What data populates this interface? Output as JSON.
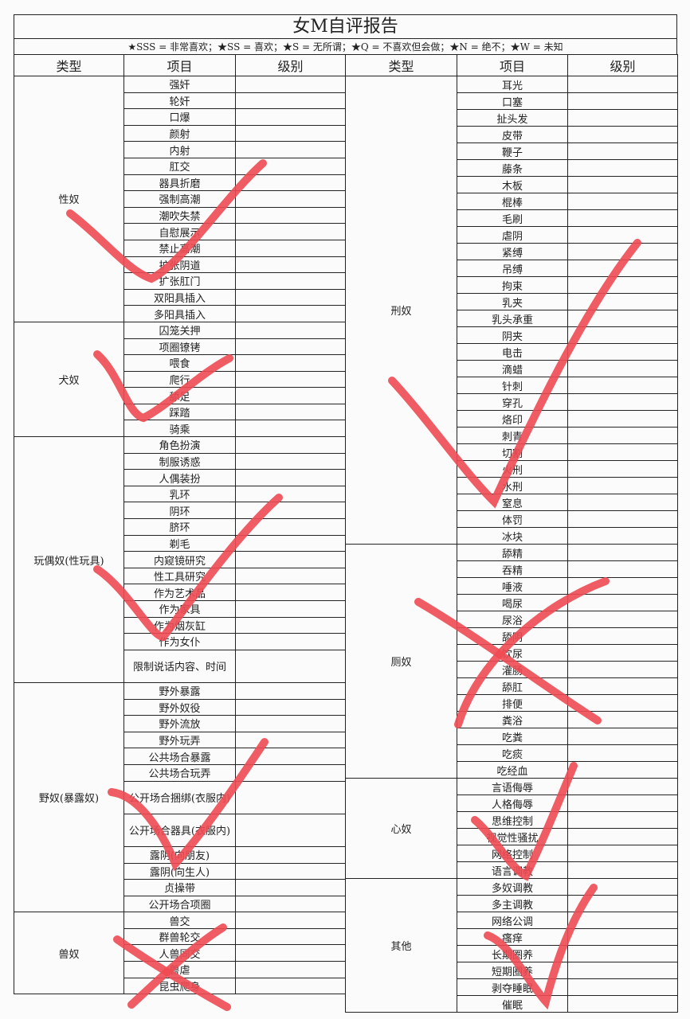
{
  "title": "女M自评报告",
  "legend": "★SSS = 非常喜欢；★SS = 喜欢；★S = 无所谓；★Q = 不喜欢但会做；★N = 绝不；★W = 未知",
  "headers": {
    "type": "类型",
    "item": "项目",
    "level": "级别"
  },
  "left": [
    {
      "type": "性奴",
      "items": [
        "强奸",
        "轮奸",
        "口爆",
        "颜射",
        "内射",
        "肛交",
        "器具折磨",
        "强制高潮",
        "潮吹失禁",
        "自慰展示",
        "禁止高潮",
        "扩张阴道",
        "扩张肛门",
        "双阳具插入",
        "多阳具插入"
      ]
    },
    {
      "type": "犬奴",
      "items": [
        "囚笼关押",
        "项圈镣铐",
        "喂食",
        "爬行",
        "舔足",
        "踩踏",
        "骑乘"
      ]
    },
    {
      "type": "玩偶奴(性玩具)",
      "items": [
        "角色扮演",
        "制服诱惑",
        "人偶装扮",
        "乳环",
        "阴环",
        "脐环",
        "剃毛",
        "内窥镜研究",
        "性工具研究",
        "作为艺术品",
        "作为家具",
        "作为烟灰缸",
        "作为女仆",
        "限制说话内容、时间"
      ],
      "tall": [
        13
      ]
    },
    {
      "type": "野奴(暴露奴)",
      "items": [
        "野外暴露",
        "野外奴役",
        "野外流放",
        "野外玩弄",
        "公共场合暴露",
        "公共场合玩弄",
        "公开场合捆绑(衣服内)",
        "公开场合器具(衣服内)",
        "露阴(向朋友)",
        "露阴(向生人)",
        "贞操带",
        "公开场合项圈"
      ],
      "tall": [
        6,
        7
      ]
    },
    {
      "type": "兽奴",
      "items": [
        "兽交",
        "群兽轮交",
        "人兽同交",
        "兽虐",
        "昆虫爬身"
      ]
    }
  ],
  "right": [
    {
      "type": "刑奴",
      "items": [
        "耳光",
        "口塞",
        "扯头发",
        "皮带",
        "鞭子",
        "藤条",
        "木板",
        "棍棒",
        "毛刷",
        "虐阴",
        "紧缚",
        "吊缚",
        "拘束",
        "乳夹",
        "乳头承重",
        "阴夹",
        "电击",
        "滴蜡",
        "针刺",
        "穿孔",
        "烙印",
        "刺青",
        "切割",
        "火刑",
        "水刑",
        "窒息",
        "体罚",
        "冰块"
      ]
    },
    {
      "type": "厕奴",
      "items": [
        "舔精",
        "吞精",
        "唾液",
        "喝尿",
        "尿浴",
        "舔阴",
        "饮尿",
        "灌肠",
        "舔肛",
        "排便",
        "粪浴",
        "吃粪",
        "吃痰",
        "吃经血"
      ]
    },
    {
      "type": "心奴",
      "items": [
        "言语侮辱",
        "人格侮辱",
        "思维控制",
        "视觉性骚扰",
        "网络控制",
        "语言调教"
      ]
    },
    {
      "type": "其他",
      "items": [
        "多奴调教",
        "多主调教",
        "网络公调",
        "瘙痒",
        "长期圈养",
        "短期圈养",
        "剥夺睡眠",
        "催眠"
      ]
    }
  ],
  "marks_color": "#ee4a52"
}
